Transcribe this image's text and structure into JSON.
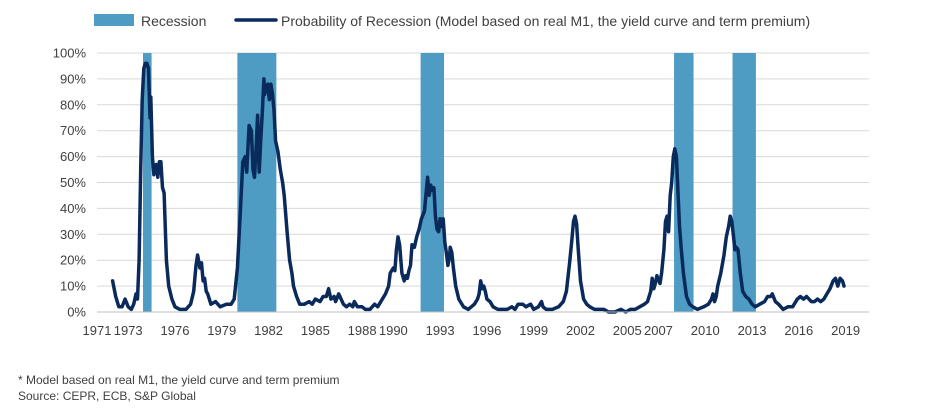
{
  "chart_data": {
    "type": "line",
    "title": "",
    "xlabel": "",
    "ylabel": "",
    "xlim": [
      1971,
      2020.5
    ],
    "ylim": [
      0,
      100
    ],
    "y_ticks": [
      0,
      10,
      20,
      30,
      40,
      50,
      60,
      70,
      80,
      90,
      100
    ],
    "y_tick_labels": [
      "0%",
      "10%",
      "20%",
      "30%",
      "40%",
      "50%",
      "60%",
      "70%",
      "80%",
      "90%",
      "100%"
    ],
    "x_ticks": [
      1971,
      1973,
      1976,
      1979,
      1982,
      1985,
      1988,
      1990,
      1993,
      1996,
      1999,
      2002,
      2005,
      2007,
      2010,
      2013,
      2016,
      2019
    ],
    "x_tick_labels": [
      "1971",
      "1973",
      "1976",
      "1979",
      "1982",
      "1985",
      "1988",
      "1990",
      "1993",
      "1996",
      "1999",
      "2002",
      "2005",
      "2007",
      "2010",
      "2013",
      "2016",
      "2019"
    ],
    "grid": "horizontal",
    "legend_position": "top",
    "legend": [
      {
        "label": "Recession",
        "type": "bar",
        "color": "#4e9cc4"
      },
      {
        "label": "Probability of Recession (Model based on real M1, the yield curve and term premium)",
        "type": "line",
        "color": "#0a2a5c"
      }
    ],
    "recessions": [
      {
        "start": 1973.95,
        "end": 1974.5
      },
      {
        "start": 1980.0,
        "end": 1982.5
      },
      {
        "start": 1991.75,
        "end": 1993.25
      },
      {
        "start": 2008.0,
        "end": 2009.25
      },
      {
        "start": 2011.75,
        "end": 2013.25
      }
    ],
    "series": [
      {
        "name": "Probability of Recession (Model based on real M1, the yield curve and term premium)",
        "color": "#0a2a5c",
        "points": [
          [
            1972.0,
            12
          ],
          [
            1972.2,
            6
          ],
          [
            1972.4,
            2
          ],
          [
            1972.6,
            2
          ],
          [
            1972.8,
            5
          ],
          [
            1973.0,
            2
          ],
          [
            1973.2,
            1
          ],
          [
            1973.35,
            3
          ],
          [
            1973.5,
            7
          ],
          [
            1973.6,
            5
          ],
          [
            1973.7,
            20
          ],
          [
            1973.8,
            55
          ],
          [
            1973.9,
            82
          ],
          [
            1974.0,
            94
          ],
          [
            1974.1,
            96
          ],
          [
            1974.2,
            96
          ],
          [
            1974.3,
            94
          ],
          [
            1974.4,
            75
          ],
          [
            1974.45,
            83
          ],
          [
            1974.55,
            60
          ],
          [
            1974.65,
            53
          ],
          [
            1974.8,
            57
          ],
          [
            1974.9,
            52
          ],
          [
            1975.0,
            58
          ],
          [
            1975.1,
            58
          ],
          [
            1975.2,
            48
          ],
          [
            1975.3,
            46
          ],
          [
            1975.45,
            20
          ],
          [
            1975.6,
            10
          ],
          [
            1975.8,
            5
          ],
          [
            1976.0,
            2
          ],
          [
            1976.3,
            1
          ],
          [
            1976.7,
            1
          ],
          [
            1977.0,
            3
          ],
          [
            1977.2,
            8
          ],
          [
            1977.35,
            18
          ],
          [
            1977.45,
            22
          ],
          [
            1977.6,
            17
          ],
          [
            1977.7,
            19
          ],
          [
            1977.8,
            12
          ],
          [
            1977.9,
            13
          ],
          [
            1978.0,
            8
          ],
          [
            1978.1,
            7
          ],
          [
            1978.3,
            3
          ],
          [
            1978.6,
            4
          ],
          [
            1978.9,
            2
          ],
          [
            1979.3,
            3
          ],
          [
            1979.6,
            3
          ],
          [
            1979.8,
            5
          ],
          [
            1980.0,
            17
          ],
          [
            1980.2,
            40
          ],
          [
            1980.35,
            58
          ],
          [
            1980.5,
            60
          ],
          [
            1980.6,
            54
          ],
          [
            1980.75,
            72
          ],
          [
            1980.9,
            70
          ],
          [
            1981.0,
            55
          ],
          [
            1981.1,
            52
          ],
          [
            1981.2,
            63
          ],
          [
            1981.3,
            76
          ],
          [
            1981.4,
            54
          ],
          [
            1981.5,
            67
          ],
          [
            1981.6,
            77
          ],
          [
            1981.7,
            90
          ],
          [
            1981.75,
            84
          ],
          [
            1981.85,
            87
          ],
          [
            1981.95,
            88
          ],
          [
            1982.05,
            82
          ],
          [
            1982.15,
            88
          ],
          [
            1982.25,
            84
          ],
          [
            1982.35,
            78
          ],
          [
            1982.45,
            66
          ],
          [
            1982.6,
            62
          ],
          [
            1982.75,
            55
          ],
          [
            1982.9,
            50
          ],
          [
            1983.0,
            45
          ],
          [
            1983.2,
            30
          ],
          [
            1983.35,
            20
          ],
          [
            1983.5,
            15
          ],
          [
            1983.6,
            10
          ],
          [
            1983.8,
            6
          ],
          [
            1984.0,
            3
          ],
          [
            1984.3,
            3
          ],
          [
            1984.6,
            4
          ],
          [
            1984.8,
            3
          ],
          [
            1985.0,
            5
          ],
          [
            1985.3,
            4
          ],
          [
            1985.5,
            6
          ],
          [
            1985.7,
            6
          ],
          [
            1985.85,
            9
          ],
          [
            1986.0,
            5
          ],
          [
            1986.2,
            6
          ],
          [
            1986.3,
            4
          ],
          [
            1986.5,
            7
          ],
          [
            1986.8,
            3
          ],
          [
            1987.0,
            2
          ],
          [
            1987.2,
            3
          ],
          [
            1987.4,
            2
          ],
          [
            1987.5,
            4
          ],
          [
            1987.7,
            2
          ],
          [
            1988.0,
            2
          ],
          [
            1988.2,
            1
          ],
          [
            1988.5,
            1
          ],
          [
            1988.8,
            3
          ],
          [
            1989.0,
            2
          ],
          [
            1989.2,
            4
          ],
          [
            1989.5,
            7
          ],
          [
            1989.7,
            10
          ],
          [
            1989.8,
            15
          ],
          [
            1990.0,
            17
          ],
          [
            1990.1,
            16
          ],
          [
            1990.2,
            24
          ],
          [
            1990.3,
            29
          ],
          [
            1990.4,
            26
          ],
          [
            1990.55,
            15
          ],
          [
            1990.7,
            12
          ],
          [
            1990.8,
            14
          ],
          [
            1990.9,
            13
          ],
          [
            1991.0,
            16
          ],
          [
            1991.1,
            18
          ],
          [
            1991.2,
            26
          ],
          [
            1991.35,
            25
          ],
          [
            1991.5,
            29
          ],
          [
            1991.65,
            32
          ],
          [
            1991.8,
            36
          ],
          [
            1992.0,
            39
          ],
          [
            1992.1,
            46
          ],
          [
            1992.2,
            52
          ],
          [
            1992.3,
            45
          ],
          [
            1992.4,
            49
          ],
          [
            1992.5,
            47
          ],
          [
            1992.6,
            48
          ],
          [
            1992.7,
            37
          ],
          [
            1992.8,
            32
          ],
          [
            1992.9,
            31
          ],
          [
            1993.0,
            36
          ],
          [
            1993.1,
            33
          ],
          [
            1993.2,
            36
          ],
          [
            1993.3,
            27
          ],
          [
            1993.4,
            23
          ],
          [
            1993.5,
            18
          ],
          [
            1993.6,
            21
          ],
          [
            1993.65,
            25
          ],
          [
            1993.75,
            23
          ],
          [
            1993.85,
            17
          ],
          [
            1994.0,
            10
          ],
          [
            1994.2,
            5
          ],
          [
            1994.5,
            2
          ],
          [
            1994.8,
            1
          ],
          [
            1995.0,
            2
          ],
          [
            1995.2,
            3
          ],
          [
            1995.4,
            5
          ],
          [
            1995.5,
            7
          ],
          [
            1995.6,
            12
          ],
          [
            1995.7,
            9
          ],
          [
            1995.8,
            10
          ],
          [
            1995.9,
            8
          ],
          [
            1996.0,
            5
          ],
          [
            1996.2,
            4
          ],
          [
            1996.4,
            2
          ],
          [
            1996.7,
            1
          ],
          [
            1997.0,
            1
          ],
          [
            1997.3,
            1
          ],
          [
            1997.6,
            2
          ],
          [
            1997.8,
            1
          ],
          [
            1998.0,
            3
          ],
          [
            1998.3,
            3
          ],
          [
            1998.5,
            2
          ],
          [
            1998.8,
            3
          ],
          [
            1999.0,
            1
          ],
          [
            1999.3,
            2
          ],
          [
            1999.5,
            4
          ],
          [
            1999.6,
            2
          ],
          [
            1999.8,
            1
          ],
          [
            2000.2,
            1
          ],
          [
            2000.6,
            2
          ],
          [
            2000.9,
            4
          ],
          [
            2001.1,
            8
          ],
          [
            2001.3,
            19
          ],
          [
            2001.45,
            28
          ],
          [
            2001.55,
            35
          ],
          [
            2001.65,
            37
          ],
          [
            2001.75,
            34
          ],
          [
            2001.85,
            25
          ],
          [
            2002.0,
            12
          ],
          [
            2002.2,
            5
          ],
          [
            2002.4,
            3
          ],
          [
            2002.6,
            2
          ],
          [
            2002.9,
            1
          ],
          [
            2003.2,
            1
          ],
          [
            2003.5,
            1
          ],
          [
            2003.8,
            0
          ],
          [
            2004.2,
            0
          ],
          [
            2004.6,
            1
          ],
          [
            2004.9,
            0
          ],
          [
            2005.2,
            1
          ],
          [
            2005.5,
            1
          ],
          [
            2005.8,
            2
          ],
          [
            2006.1,
            3
          ],
          [
            2006.3,
            4
          ],
          [
            2006.5,
            8
          ],
          [
            2006.6,
            13
          ],
          [
            2006.7,
            9
          ],
          [
            2006.8,
            11
          ],
          [
            2006.9,
            14
          ],
          [
            2007.1,
            11
          ],
          [
            2007.2,
            15
          ],
          [
            2007.35,
            24
          ],
          [
            2007.45,
            35
          ],
          [
            2007.55,
            37
          ],
          [
            2007.65,
            31
          ],
          [
            2007.75,
            45
          ],
          [
            2007.85,
            50
          ],
          [
            2007.95,
            60
          ],
          [
            2008.05,
            63
          ],
          [
            2008.15,
            60
          ],
          [
            2008.25,
            47
          ],
          [
            2008.35,
            33
          ],
          [
            2008.45,
            25
          ],
          [
            2008.6,
            15
          ],
          [
            2008.8,
            6
          ],
          [
            2009.0,
            3
          ],
          [
            2009.2,
            2
          ],
          [
            2009.5,
            1
          ],
          [
            2009.9,
            2
          ],
          [
            2010.2,
            3
          ],
          [
            2010.4,
            5
          ],
          [
            2010.5,
            7
          ],
          [
            2010.6,
            4
          ],
          [
            2010.7,
            6
          ],
          [
            2010.8,
            10
          ],
          [
            2011.0,
            15
          ],
          [
            2011.2,
            22
          ],
          [
            2011.35,
            29
          ],
          [
            2011.5,
            33
          ],
          [
            2011.6,
            37
          ],
          [
            2011.7,
            35
          ],
          [
            2011.8,
            30
          ],
          [
            2011.9,
            24
          ],
          [
            2012.0,
            25
          ],
          [
            2012.1,
            24
          ],
          [
            2012.25,
            15
          ],
          [
            2012.4,
            8
          ],
          [
            2012.6,
            6
          ],
          [
            2012.8,
            5
          ],
          [
            2013.0,
            3
          ],
          [
            2013.2,
            2
          ],
          [
            2013.5,
            3
          ],
          [
            2013.8,
            4
          ],
          [
            2014.0,
            6
          ],
          [
            2014.2,
            6
          ],
          [
            2014.3,
            7
          ],
          [
            2014.5,
            4
          ],
          [
            2014.7,
            3
          ],
          [
            2015.0,
            1
          ],
          [
            2015.3,
            2
          ],
          [
            2015.6,
            2
          ],
          [
            2015.9,
            5
          ],
          [
            2016.1,
            6
          ],
          [
            2016.3,
            5
          ],
          [
            2016.5,
            6
          ],
          [
            2016.8,
            4
          ],
          [
            2017.0,
            4
          ],
          [
            2017.2,
            5
          ],
          [
            2017.4,
            4
          ],
          [
            2017.6,
            5
          ],
          [
            2017.8,
            7
          ],
          [
            2018.0,
            9
          ],
          [
            2018.2,
            12
          ],
          [
            2018.35,
            13
          ],
          [
            2018.5,
            10
          ],
          [
            2018.65,
            13
          ],
          [
            2018.8,
            12
          ],
          [
            2018.9,
            10
          ]
        ]
      }
    ]
  },
  "footnote": "* Model based on real M1, the yield curve and term premium",
  "source": "Source: CEPR, ECB, S&P Global"
}
